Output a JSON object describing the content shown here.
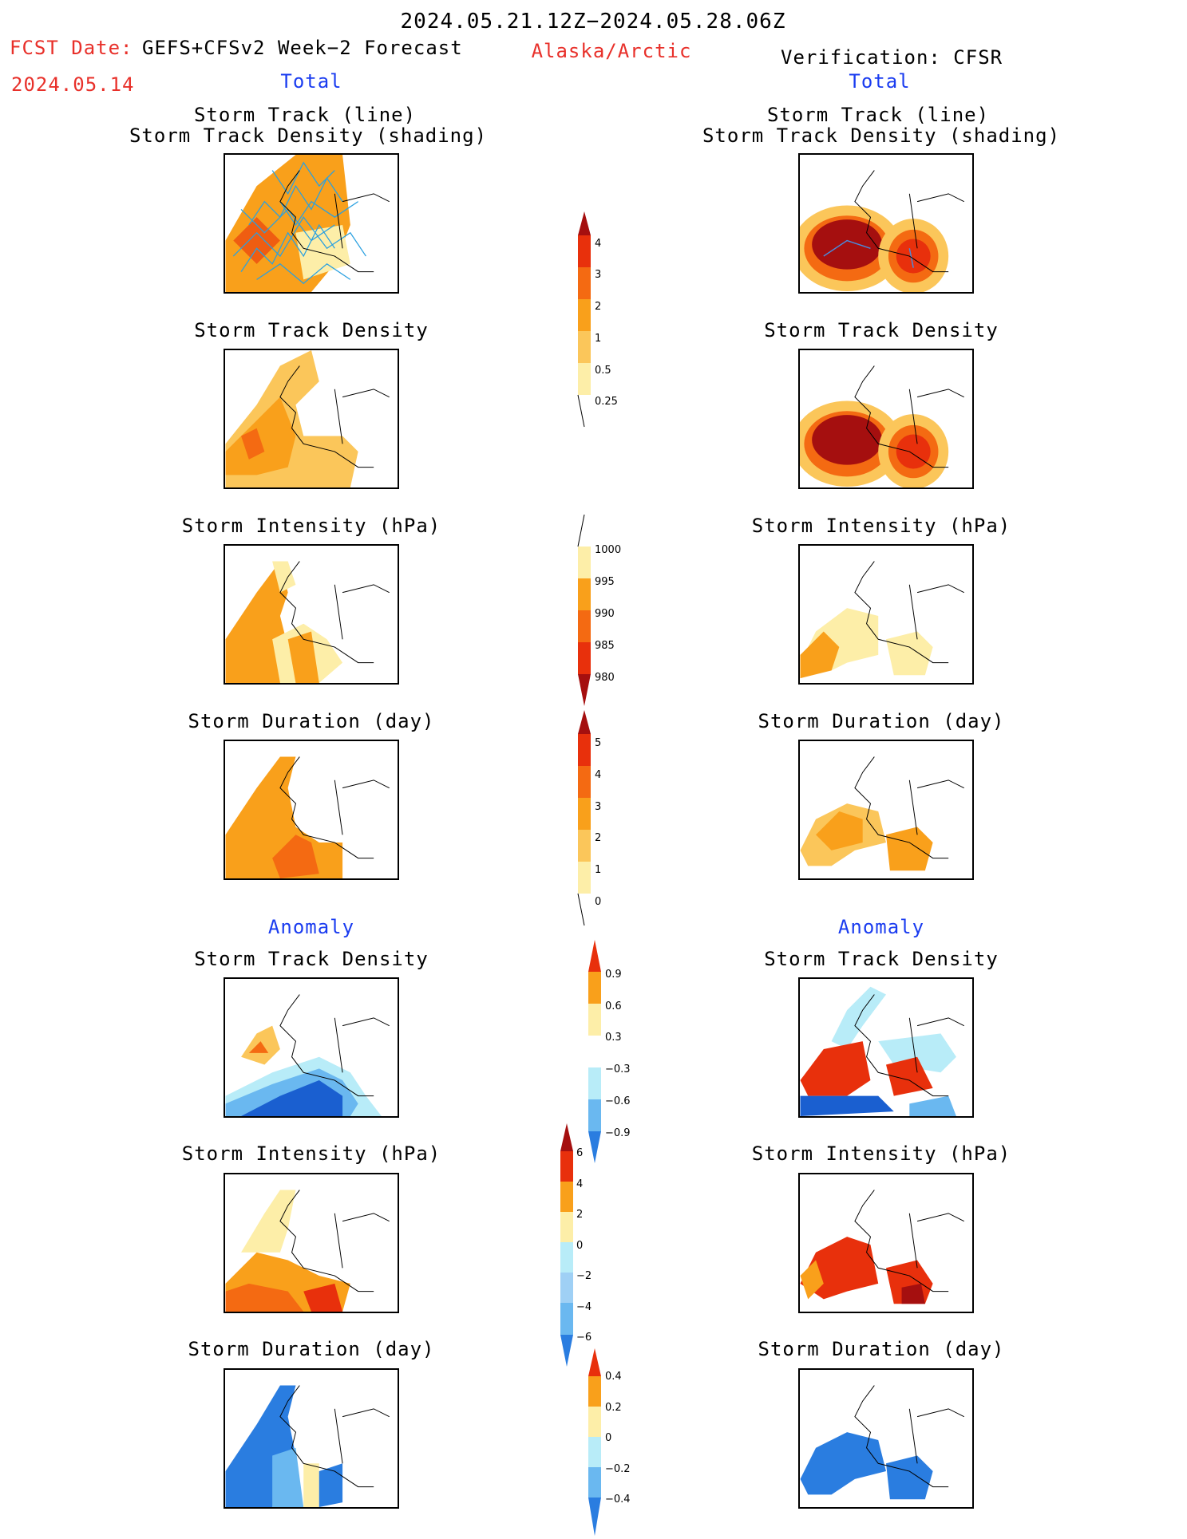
{
  "header": {
    "date_range": "2024.05.21.12Z−2024.05.28.06Z",
    "fcst_label": "FCST Date:",
    "fcst_date": "2024.05.14",
    "forecast_title": "GEFS+CFSv2 Week−2 Forecast",
    "region": "Alaska/Arctic",
    "verification": "Verification: CFSR"
  },
  "sections": {
    "total": "Total",
    "anomaly": "Anomaly"
  },
  "panel_titles": {
    "track_line": "Storm Track (line)",
    "track_density_shading": "Storm Track Density (shading)",
    "track_density": "Storm Track Density",
    "intensity": "Storm Intensity (hPa)",
    "duration": "Storm Duration (day)"
  },
  "colorbars": {
    "density": [
      "4",
      "3",
      "2",
      "1",
      "0.5",
      "0.25"
    ],
    "intensity": [
      "1000",
      "995",
      "990",
      "985",
      "980"
    ],
    "duration": [
      "5",
      "4",
      "3",
      "2",
      "1",
      "0"
    ],
    "density_anom": [
      "0.9",
      "0.6",
      "0.3",
      "−0.3",
      "−0.6",
      "−0.9"
    ],
    "intensity_anom": [
      "6",
      "4",
      "2",
      "0",
      "−2",
      "−4",
      "−6"
    ],
    "duration_anom": [
      "0.4",
      "0.2",
      "0",
      "−0.2",
      "−0.4"
    ]
  },
  "colors": {
    "dark_red": "#a50f0f",
    "red": "#e8300c",
    "orange_red": "#f46a12",
    "orange": "#f9a01b",
    "light_orange": "#fbc65a",
    "yellow": "#fdeea8",
    "light_blue": "#b8ecf8",
    "mid_blue": "#6ab8f0",
    "blue": "#2a7de0",
    "dark_blue": "#1a5fd0",
    "track_line": "#2aa0e0"
  }
}
